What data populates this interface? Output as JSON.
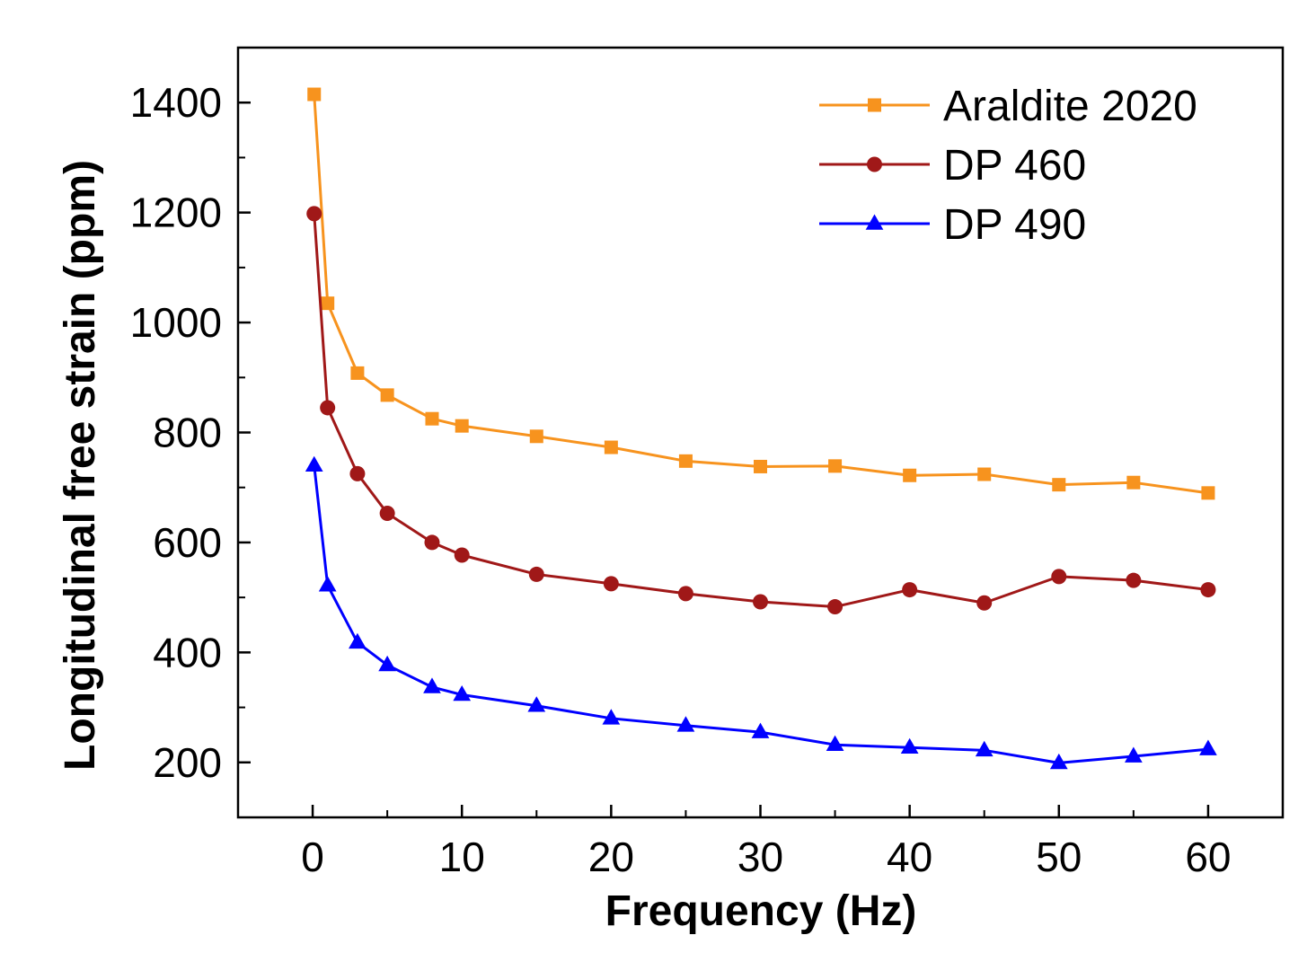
{
  "chart_data": {
    "type": "line",
    "title": "",
    "xlabel": "Frequency (Hz)",
    "ylabel": "Longitudinal free strain (ppm)",
    "xlim": [
      -5,
      65
    ],
    "ylim": [
      100,
      1500
    ],
    "xticks": [
      0,
      10,
      20,
      30,
      40,
      50,
      60
    ],
    "yticks": [
      200,
      400,
      600,
      800,
      1000,
      1200,
      1400
    ],
    "xtick_labels": [
      "0",
      "10",
      "20",
      "30",
      "40",
      "50",
      "60"
    ],
    "ytick_labels": [
      "200",
      "400",
      "600",
      "800",
      "1000",
      "1200",
      "1400"
    ],
    "grid": false,
    "legend_position": "top-right",
    "x": [
      0.1,
      1,
      3,
      5,
      8,
      10,
      15,
      20,
      25,
      30,
      35,
      40,
      45,
      50,
      55,
      60
    ],
    "series": [
      {
        "name": "Araldite 2020",
        "color": "#f7931e",
        "marker": "square",
        "values": [
          1415,
          1035,
          908,
          868,
          825,
          812,
          793,
          773,
          748,
          738,
          739,
          722,
          724,
          705,
          709,
          690
        ]
      },
      {
        "name": "DP 460",
        "color": "#a01818",
        "marker": "circle",
        "values": [
          1198,
          845,
          725,
          653,
          600,
          577,
          542,
          525,
          507,
          492,
          483,
          514,
          490,
          538,
          531,
          514
        ]
      },
      {
        "name": "DP 490",
        "color": "#0000ff",
        "marker": "triangle",
        "values": [
          740,
          522,
          418,
          377,
          337,
          323,
          303,
          280,
          267,
          255,
          232,
          227,
          222,
          199,
          211,
          224
        ]
      }
    ]
  }
}
